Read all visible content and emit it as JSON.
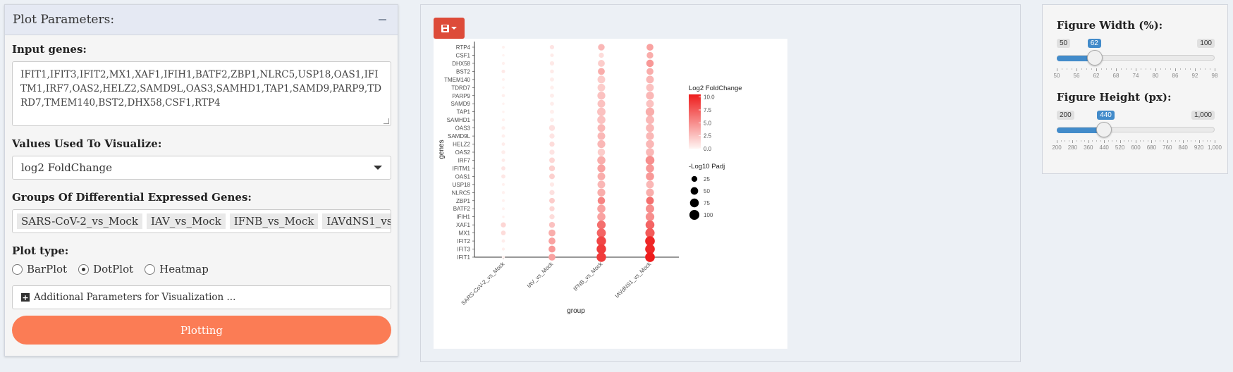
{
  "left_panel": {
    "title": "Plot Parameters:",
    "input_genes": {
      "label": "Input genes:",
      "value": "IFIT1,IFIT3,IFIT2,MX1,XAF1,IFIH1,BATF2,ZBP1,NLRC5,USP18,OAS1,IFITM1,IRF7,OAS2,HELZ2,SAMD9L,OAS3,SAMHD1,TAP1,SAMD9,PARP9,TDRD7,TMEM140,BST2,DHX58,CSF1,RTP4"
    },
    "values_used": {
      "label": "Values Used To Visualize:",
      "selected": "log2 FoldChange"
    },
    "groups": {
      "label": "Groups Of Differential Expressed Genes:",
      "tags": [
        "SARS-CoV-2_vs_Mock",
        "IAV_vs_Mock",
        "IFNB_vs_Mock",
        "IAVdNS1_vs_Mock"
      ]
    },
    "plot_type": {
      "label": "Plot type:",
      "options": [
        "BarPlot",
        "DotPlot",
        "Heatmap"
      ],
      "selected": "DotPlot"
    },
    "additional_params": "Additional Parameters for Visualization ...",
    "plot_button": "Plotting"
  },
  "right_panel": {
    "width_slider": {
      "label": "Figure Width (%):",
      "min": "50",
      "max": "100",
      "value": "62",
      "value_num": 62,
      "min_num": 50,
      "max_num": 100,
      "ticks": [
        "50",
        "56",
        "62",
        "68",
        "74",
        "80",
        "86",
        "92",
        "98"
      ]
    },
    "height_slider": {
      "label": "Figure Height (px):",
      "min": "200",
      "max": "1,000",
      "value": "440",
      "value_num": 440,
      "min_num": 200,
      "max_num": 1000,
      "ticks": [
        "200",
        "280",
        "360",
        "440",
        "520",
        "600",
        "680",
        "760",
        "840",
        "920",
        "1,000"
      ]
    }
  },
  "colors": {
    "accent": "#428bca",
    "plot_button": "#fb7c55",
    "save_button": "#dd4b39",
    "dot_high": "#ee1c1c",
    "dot_low": "#fff5f3"
  },
  "chart_data": {
    "type": "scatter",
    "xlabel": "group",
    "ylabel": "genes",
    "categories": [
      "SARS-CoV-2_vs_Mock",
      "IAV_vs_Mock",
      "IFNB_vs_Mock",
      "IAVdNS1_vs_Mock"
    ],
    "genes": [
      "RTP4",
      "CSF1",
      "DHX58",
      "BST2",
      "TMEM140",
      "TDRD7",
      "PARP9",
      "SAMD9",
      "TAP1",
      "SAMHD1",
      "OAS3",
      "SAMD9L",
      "HELZ2",
      "OAS2",
      "IRF7",
      "IFITM1",
      "OAS1",
      "USP18",
      "NLRC5",
      "ZBP1",
      "BATF2",
      "IFIH1",
      "XAF1",
      "MX1",
      "IFIT2",
      "IFIT3",
      "IFIT1"
    ],
    "log2fc": [
      [
        0.2,
        0.8,
        3.0,
        4.0
      ],
      [
        0.1,
        0.5,
        1.2,
        3.5
      ],
      [
        0.2,
        0.6,
        2.0,
        4.5
      ],
      [
        0.6,
        0.5,
        3.5,
        3.5
      ],
      [
        0.2,
        0.4,
        2.0,
        3.0
      ],
      [
        0.1,
        0.3,
        2.0,
        2.5
      ],
      [
        0.3,
        0.4,
        2.5,
        3.0
      ],
      [
        0.1,
        0.4,
        2.5,
        2.5
      ],
      [
        0.1,
        0.3,
        2.5,
        3.5
      ],
      [
        0.2,
        0.4,
        2.5,
        3.0
      ],
      [
        0.3,
        1.0,
        3.0,
        3.0
      ],
      [
        0.3,
        0.8,
        3.0,
        3.0
      ],
      [
        0.4,
        1.2,
        3.0,
        3.0
      ],
      [
        0.4,
        0.8,
        2.0,
        3.0
      ],
      [
        0.5,
        1.5,
        3.5,
        5.0
      ],
      [
        0.8,
        1.8,
        4.0,
        4.5
      ],
      [
        0.7,
        1.8,
        3.5,
        4.5
      ],
      [
        0.2,
        0.6,
        3.0,
        3.0
      ],
      [
        0.2,
        1.0,
        3.5,
        3.5
      ],
      [
        0.2,
        2.0,
        5.5,
        6.5
      ],
      [
        0.2,
        1.5,
        4.0,
        5.0
      ],
      [
        0.2,
        1.2,
        4.0,
        5.0
      ],
      [
        1.5,
        2.5,
        6.5,
        7.0
      ],
      [
        1.2,
        3.5,
        7.0,
        7.5
      ],
      [
        0.4,
        4.0,
        8.5,
        10.0
      ],
      [
        0.3,
        4.5,
        9.0,
        10.0
      ],
      [
        0.2,
        4.0,
        9.0,
        10.5
      ]
    ],
    "neglog10padj": [
      [
        2,
        12,
        40,
        45
      ],
      [
        1,
        6,
        20,
        40
      ],
      [
        3,
        12,
        45,
        55
      ],
      [
        6,
        8,
        45,
        45
      ],
      [
        2,
        10,
        60,
        60
      ],
      [
        1,
        8,
        60,
        60
      ],
      [
        4,
        10,
        65,
        65
      ],
      [
        1,
        8,
        60,
        60
      ],
      [
        1,
        10,
        75,
        80
      ],
      [
        3,
        10,
        70,
        75
      ],
      [
        6,
        30,
        60,
        70
      ],
      [
        5,
        20,
        60,
        65
      ],
      [
        5,
        20,
        65,
        70
      ],
      [
        8,
        20,
        55,
        70
      ],
      [
        5,
        25,
        70,
        85
      ],
      [
        10,
        30,
        65,
        70
      ],
      [
        10,
        25,
        60,
        70
      ],
      [
        2,
        12,
        60,
        60
      ],
      [
        3,
        20,
        65,
        65
      ],
      [
        2,
        25,
        55,
        60
      ],
      [
        2,
        20,
        70,
        75
      ],
      [
        1,
        20,
        70,
        80
      ],
      [
        20,
        30,
        80,
        85
      ],
      [
        15,
        45,
        90,
        95
      ],
      [
        5,
        45,
        100,
        105
      ],
      [
        3,
        45,
        100,
        105
      ],
      [
        3,
        45,
        100,
        105
      ]
    ],
    "color_legend": {
      "title": "Log2 FoldChange",
      "ticks": [
        "10.0",
        "7.5",
        "5.0",
        "2.5",
        "0.0"
      ],
      "range": [
        0,
        10.5
      ]
    },
    "size_legend": {
      "title": "-Log10 Padj",
      "values": [
        "25",
        "50",
        "75",
        "100"
      ]
    }
  }
}
